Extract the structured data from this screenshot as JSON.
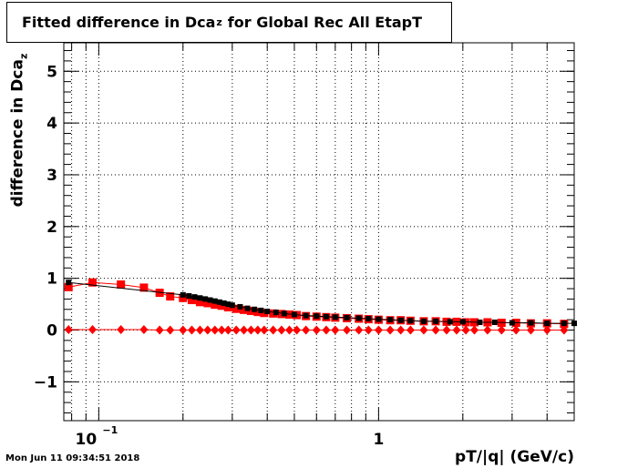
{
  "chart_data": {
    "type": "scatter",
    "title_main": "Fitted difference in Dca",
    "title_sub": "z",
    "title_rest": "for Global Rec All EtapT",
    "ylabel_main": "difference in Dca",
    "ylabel_sub": "z",
    "xlabel": "pT/|q| (GeV/c)",
    "x_scale": "log",
    "xlim": [
      0.075,
      5.0
    ],
    "ylim": [
      -1.75,
      5.55
    ],
    "grid": true,
    "y_ticks": [
      {
        "value": -1,
        "label": "−1"
      },
      {
        "value": 0,
        "label": "0"
      },
      {
        "value": 1,
        "label": "1"
      },
      {
        "value": 2,
        "label": "2"
      },
      {
        "value": 3,
        "label": "3"
      },
      {
        "value": 4,
        "label": "4"
      },
      {
        "value": 5,
        "label": "5"
      }
    ],
    "x_tick_labels": [
      {
        "value": 0.1,
        "base": "10",
        "exp": "−1"
      },
      {
        "value": 1,
        "base": "1",
        "exp": ""
      }
    ],
    "series": [
      {
        "marker": "square",
        "color": "#ff0000",
        "x": [
          0.078,
          0.095,
          0.12,
          0.145,
          0.165,
          0.18,
          0.2,
          0.215,
          0.23,
          0.245,
          0.26,
          0.275,
          0.29,
          0.31,
          0.33,
          0.35,
          0.37,
          0.39,
          0.42,
          0.45,
          0.48,
          0.51,
          0.55,
          0.6,
          0.65,
          0.7,
          0.77,
          0.85,
          0.92,
          1.0,
          1.1,
          1.2,
          1.3,
          1.45,
          1.6,
          1.75,
          1.9,
          2.05,
          2.2,
          2.45,
          2.75,
          3.1,
          3.5,
          4.0,
          4.6
        ],
        "y": [
          0.83,
          0.92,
          0.88,
          0.82,
          0.72,
          0.65,
          0.62,
          0.58,
          0.54,
          0.52,
          0.49,
          0.47,
          0.44,
          0.41,
          0.39,
          0.37,
          0.35,
          0.33,
          0.32,
          0.31,
          0.3,
          0.29,
          0.27,
          0.26,
          0.25,
          0.24,
          0.23,
          0.22,
          0.21,
          0.2,
          0.19,
          0.19,
          0.18,
          0.17,
          0.17,
          0.16,
          0.16,
          0.15,
          0.15,
          0.15,
          0.14,
          0.14,
          0.13,
          0.13,
          0.12
        ]
      },
      {
        "marker": "diamond",
        "color": "#ff0000",
        "x": [
          0.078,
          0.095,
          0.12,
          0.145,
          0.165,
          0.18,
          0.2,
          0.215,
          0.23,
          0.245,
          0.26,
          0.275,
          0.29,
          0.31,
          0.33,
          0.35,
          0.37,
          0.39,
          0.42,
          0.45,
          0.48,
          0.51,
          0.55,
          0.6,
          0.65,
          0.7,
          0.77,
          0.85,
          0.92,
          1.0,
          1.1,
          1.2,
          1.3,
          1.45,
          1.6,
          1.75,
          1.9,
          2.05,
          2.2,
          2.45,
          2.75,
          3.1,
          3.5,
          4.0,
          4.6
        ],
        "y": [
          0.01,
          0.01,
          0.01,
          0.01,
          0.0,
          0.0,
          0.0,
          0.0,
          0.0,
          0.0,
          0.0,
          0.0,
          0.0,
          0.0,
          0.0,
          0.0,
          0.0,
          0.0,
          0.0,
          0.0,
          0.0,
          0.0,
          0.0,
          0.0,
          0.0,
          0.0,
          0.0,
          0.0,
          0.0,
          0.0,
          0.0,
          0.0,
          0.0,
          0.0,
          0.0,
          0.0,
          0.0,
          0.0,
          0.0,
          0.0,
          0.0,
          0.0,
          0.0,
          0.0,
          0.0
        ]
      },
      {
        "marker": "small-square",
        "color": "#000000",
        "x": [
          0.078,
          0.2,
          0.21,
          0.22,
          0.23,
          0.24,
          0.25,
          0.26,
          0.27,
          0.28,
          0.29,
          0.3,
          0.32,
          0.34,
          0.36,
          0.38,
          0.4,
          0.43,
          0.46,
          0.5,
          0.55,
          0.6,
          0.65,
          0.7,
          0.77,
          0.85,
          0.92,
          1.0,
          1.1,
          1.2,
          1.3,
          1.45,
          1.6,
          1.8,
          2.0,
          2.3,
          2.6,
          3.0,
          3.5,
          4.0,
          4.6,
          5.0
        ],
        "y": [
          0.92,
          0.68,
          0.66,
          0.64,
          0.62,
          0.6,
          0.58,
          0.56,
          0.54,
          0.52,
          0.5,
          0.48,
          0.45,
          0.42,
          0.4,
          0.38,
          0.36,
          0.34,
          0.32,
          0.3,
          0.28,
          0.27,
          0.26,
          0.25,
          0.24,
          0.23,
          0.22,
          0.21,
          0.2,
          0.19,
          0.18,
          0.17,
          0.17,
          0.16,
          0.16,
          0.15,
          0.15,
          0.14,
          0.14,
          0.13,
          0.13,
          0.13
        ]
      }
    ]
  },
  "timestamp": "Mon Jun 11 09:34:51 2018"
}
